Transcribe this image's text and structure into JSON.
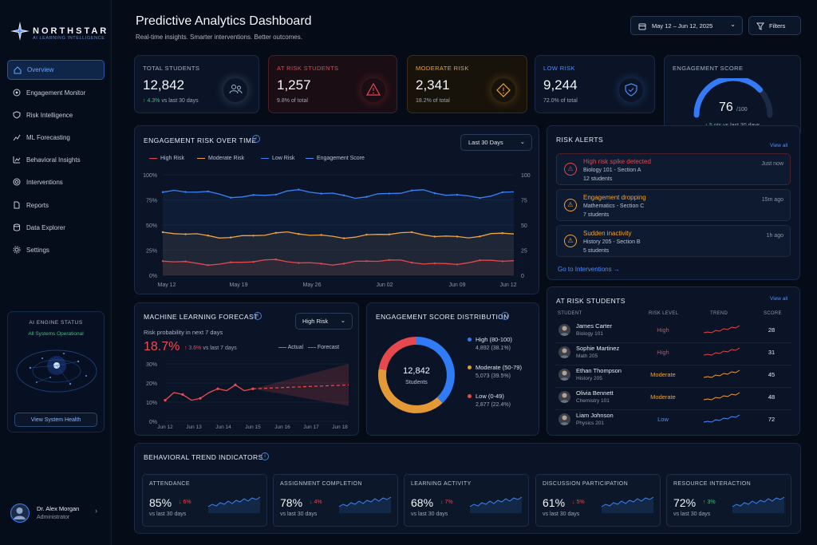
{
  "app": {
    "brand": "NORTHSTAR",
    "tagline": "AI LEARNING INTELLIGENCE"
  },
  "header": {
    "title": "Predictive Analytics Dashboard",
    "subtitle": "Real-time insights. Smarter interventions. Better outcomes.",
    "date_range": "May 12 – Jun 12, 2025",
    "filters_label": "Filters"
  },
  "sidebar": {
    "items": [
      {
        "label": "Overview",
        "icon": "home-icon",
        "active": true
      },
      {
        "label": "Engagement Monitor",
        "icon": "target-icon"
      },
      {
        "label": "Risk Intelligence",
        "icon": "shield-icon"
      },
      {
        "label": "ML Forecasting",
        "icon": "chart-icon"
      },
      {
        "label": "Behavioral Insights",
        "icon": "activity-icon"
      },
      {
        "label": "Interventions",
        "icon": "lifebuoy-icon"
      },
      {
        "label": "Reports",
        "icon": "file-icon"
      },
      {
        "label": "Data Explorer",
        "icon": "database-icon"
      },
      {
        "label": "Settings",
        "icon": "gear-icon"
      }
    ],
    "engine": {
      "title": "AI ENGINE STATUS",
      "status": "All Systems Operational",
      "button": "View System Health"
    },
    "user": {
      "name": "Dr. Alex Morgan",
      "role": "Administrator"
    }
  },
  "kpis": [
    {
      "label": "TOTAL STUDENTS",
      "value": "12,842",
      "sub_delta": "↑ 4.3%",
      "sub": "vs last 30 days",
      "color": "#9fb3cf"
    },
    {
      "label": "AT RISK STUDENTS",
      "value": "1,257",
      "sub": "9.8% of total",
      "color": "#e5484d"
    },
    {
      "label": "MODERATE RISK",
      "value": "2,341",
      "sub": "18.2% of total",
      "color": "#f0a23b"
    },
    {
      "label": "LOW RISK",
      "value": "9,244",
      "sub": "72.0% of total",
      "color": "#4d8dff"
    }
  ],
  "engagement_score": {
    "label": "ENGAGEMENT SCORE",
    "value": "76",
    "max": "/100",
    "delta": "↑ 5 pts",
    "sub": "vs last 30 days",
    "fraction": 0.76
  },
  "risk_over_time": {
    "title": "ENGAGEMENT RISK OVER TIME",
    "period": "Last 30 Days",
    "legend": [
      "High Risk",
      "Moderate Risk",
      "Low Risk",
      "Engagement Score"
    ],
    "left_ticks": [
      "100%",
      "75%",
      "50%",
      "25%",
      "0%"
    ],
    "right_ticks": [
      "100",
      "75",
      "50",
      "25",
      "0"
    ],
    "x_ticks": [
      "May 12",
      "May 19",
      "May 26",
      "Jun 02",
      "Jun 09",
      "Jun 12"
    ]
  },
  "risk_alerts": {
    "title": "RISK ALERTS",
    "view_all": "View all",
    "items": [
      {
        "title": "High risk spike detected",
        "course": "Biology 101 - Section A",
        "count": "12 students",
        "time": "Just now",
        "color": "#e5484d"
      },
      {
        "title": "Engagement dropping",
        "course": "Mathematics - Section C",
        "count": "7 students",
        "time": "15m ago",
        "color": "#f0a23b"
      },
      {
        "title": "Sudden inactivity",
        "course": "History 205 - Section B",
        "count": "5 students",
        "time": "1h ago",
        "color": "#f0a23b"
      }
    ],
    "link": "Go to Interventions"
  },
  "ml_forecast": {
    "title": "MACHINE LEARNING FORECAST",
    "selector": "High Risk",
    "caption": "Risk probability in next 7 days",
    "value": "18.7%",
    "delta": "↑ 3.6%",
    "delta_sub": "vs last 7 days",
    "legend": [
      "Actual",
      "Forecast"
    ],
    "y_ticks": [
      "30%",
      "20%",
      "10%",
      "0%"
    ],
    "x_ticks": [
      "Jun 12",
      "Jun 13",
      "Jun 14",
      "Jun 15",
      "Jun 16",
      "Jun 17",
      "Jun 18"
    ]
  },
  "distribution": {
    "title": "ENGAGEMENT SCORE DISTRIBUTION",
    "center_value": "12,842",
    "center_label": "Students",
    "segments": [
      {
        "label": "High (80-100)",
        "detail": "4,892 (38.1%)",
        "fraction": 0.381,
        "color": "#2f7cf6"
      },
      {
        "label": "Moderate (50-79)",
        "detail": "5,073 (39.5%)",
        "fraction": 0.395,
        "color": "#e39a36"
      },
      {
        "label": "Low (0-49)",
        "detail": "2,877 (22.4%)",
        "fraction": 0.224,
        "color": "#e5484d"
      }
    ]
  },
  "at_risk": {
    "title": "AT RISK STUDENTS",
    "view_all": "View all",
    "columns": [
      "STUDENT",
      "RISK LEVEL",
      "TREND",
      "SCORE"
    ],
    "rows": [
      {
        "name": "James Carter",
        "course": "Biology 101",
        "level": "High",
        "score": "28",
        "color": "#e5484d"
      },
      {
        "name": "Sophie Martinez",
        "course": "Math 205",
        "level": "High",
        "score": "31",
        "color": "#e5484d"
      },
      {
        "name": "Ethan Thompson",
        "course": "History 205",
        "level": "Moderate",
        "score": "45",
        "color": "#f0a23b"
      },
      {
        "name": "Olivia Bennett",
        "course": "Chemistry 101",
        "level": "Moderate",
        "score": "48",
        "color": "#f0a23b"
      },
      {
        "name": "Liam Johnson",
        "course": "Physics 201",
        "level": "Low",
        "score": "72",
        "color": "#4d8dff"
      }
    ]
  },
  "behavioral": {
    "title": "BEHAVIORAL TREND INDICATORS",
    "items": [
      {
        "label": "ATTENDANCE",
        "value": "85%",
        "delta": "↓ 6%",
        "sub": "vs last 30 days",
        "color": "#e5484d"
      },
      {
        "label": "ASSIGNMENT COMPLETION",
        "value": "78%",
        "delta": "↓ 4%",
        "sub": "vs last 30 days",
        "color": "#e5484d"
      },
      {
        "label": "LEARNING ACTIVITY",
        "value": "68%",
        "delta": "↓ 7%",
        "sub": "vs last 30 days",
        "color": "#e5484d"
      },
      {
        "label": "DISCUSSION PARTICIPATION",
        "value": "61%",
        "delta": "↓ 5%",
        "sub": "vs last 30 days",
        "color": "#e5484d"
      },
      {
        "label": "RESOURCE INTERACTION",
        "value": "72%",
        "delta": "↑ 3%",
        "sub": "vs last 30 days",
        "color": "#3fbf7f"
      }
    ]
  }
}
